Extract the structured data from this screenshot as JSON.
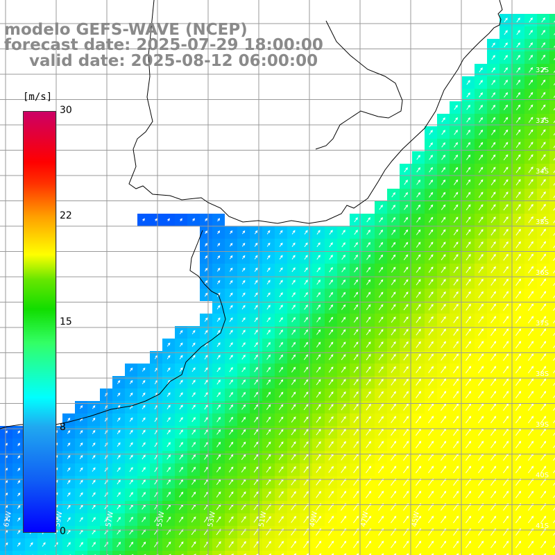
{
  "title": {
    "line1": "modelo GEFS-WAVE (NCEP)",
    "line2": "forecast date: 2025-07-29 18:00:00",
    "line3": "valid date: 2025-08-12 06:00:00"
  },
  "colorbar": {
    "unit": "[m/s]",
    "ticks": [
      "30",
      "22",
      "15",
      "8",
      "0"
    ],
    "colors": [
      "#0000ff",
      "#20a8f0",
      "#00ffff",
      "#11dd00",
      "#ffff00",
      "#ff0000",
      "#cc0066"
    ]
  },
  "map": {
    "lon_labels": [
      "61W",
      "59W",
      "57W",
      "55W",
      "53W",
      "51W",
      "49W",
      "47W",
      "45W"
    ],
    "lat_labels": [
      "32S",
      "33S",
      "34S",
      "35S",
      "36S",
      "37S",
      "38S",
      "39S",
      "40S",
      "41S"
    ],
    "land_color": "#ffffff",
    "grid_color": "#999999",
    "arrow_color": "#ffffff"
  }
}
